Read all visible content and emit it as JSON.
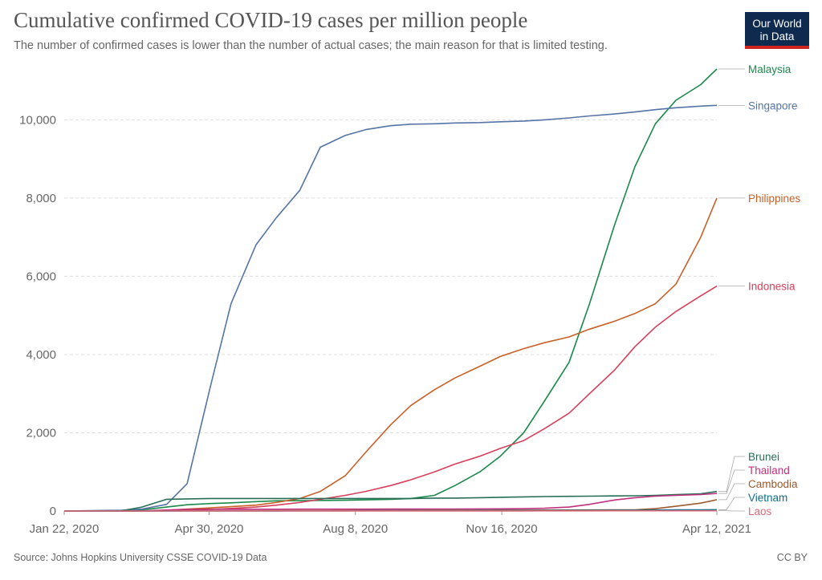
{
  "header": {
    "title": "Cumulative confirmed COVID-19 cases per million people",
    "subtitle": "The number of confirmed cases is lower than the number of actual cases; the main reason for that is limited testing."
  },
  "logo": {
    "line1": "Our World",
    "line2": "in Data"
  },
  "footer": {
    "source": "Source: Johns Hopkins University CSSE COVID-19 Data",
    "license": "CC BY"
  },
  "chart_data": {
    "type": "line",
    "title": "Cumulative confirmed COVID-19 cases per million people",
    "subtitle": "The number of confirmed cases is lower than the number of actual cases; the main reason for that is limited testing.",
    "xlabel": "",
    "ylabel": "",
    "xlim": [
      "2020-01-22",
      "2021-04-12"
    ],
    "ylim": [
      0,
      11300
    ],
    "xticks": [
      "Jan 22, 2020",
      "Apr 30, 2020",
      "Aug 8, 2020",
      "Nov 16, 2020",
      "Apr 12, 2021"
    ],
    "yticks": [
      "0",
      "2,000",
      "4,000",
      "6,000",
      "8,000",
      "10,000"
    ],
    "grid": "horizontal dashed",
    "legend": "line labels at right end",
    "x": [
      "2020-01-22",
      "2020-03-01",
      "2020-03-15",
      "2020-04-01",
      "2020-04-15",
      "2020-05-01",
      "2020-05-15",
      "2020-06-01",
      "2020-06-15",
      "2020-07-01",
      "2020-07-15",
      "2020-08-01",
      "2020-08-15",
      "2020-09-01",
      "2020-09-15",
      "2020-10-01",
      "2020-10-15",
      "2020-11-01",
      "2020-11-15",
      "2020-12-01",
      "2020-12-15",
      "2021-01-01",
      "2021-01-15",
      "2021-02-01",
      "2021-02-15",
      "2021-03-01",
      "2021-03-15",
      "2021-04-01",
      "2021-04-12"
    ],
    "series": [
      {
        "name": "Malaysia",
        "color": "#1a8a4a",
        "values": [
          0,
          0,
          30,
          100,
          160,
          190,
          210,
          240,
          260,
          265,
          270,
          275,
          285,
          300,
          320,
          400,
          650,
          1000,
          1400,
          2000,
          2800,
          3800,
          5300,
          7300,
          8800,
          9900,
          10500,
          10900,
          11300
        ]
      },
      {
        "name": "Singapore",
        "color": "#5574a6",
        "values": [
          0,
          20,
          50,
          170,
          700,
          3200,
          5300,
          6800,
          7500,
          8200,
          9300,
          9600,
          9750,
          9850,
          9890,
          9900,
          9920,
          9930,
          9950,
          9970,
          10000,
          10050,
          10100,
          10150,
          10200,
          10260,
          10310,
          10350,
          10370
        ]
      },
      {
        "name": "Philippines",
        "color": "#c86028",
        "values": [
          0,
          0,
          1,
          20,
          50,
          80,
          110,
          150,
          220,
          320,
          500,
          900,
          1500,
          2200,
          2700,
          3100,
          3400,
          3700,
          3950,
          4150,
          4300,
          4450,
          4650,
          4850,
          5050,
          5300,
          5800,
          7000,
          8000
        ]
      },
      {
        "name": "Indonesia",
        "color": "#d6405b",
        "values": [
          0,
          0,
          1,
          7,
          20,
          40,
          65,
          100,
          150,
          220,
          300,
          400,
          500,
          650,
          800,
          1000,
          1200,
          1400,
          1600,
          1800,
          2100,
          2500,
          3000,
          3600,
          4200,
          4700,
          5100,
          5500,
          5750
        ]
      },
      {
        "name": "Brunei",
        "color": "#286e56",
        "values": [
          0,
          5,
          100,
          300,
          310,
          320,
          320,
          320,
          320,
          320,
          320,
          320,
          320,
          320,
          320,
          330,
          330,
          340,
          350,
          360,
          370,
          375,
          380,
          385,
          390,
          400,
          420,
          440,
          500
        ]
      },
      {
        "name": "Thailand",
        "color": "#c0317d",
        "values": [
          0,
          1,
          5,
          25,
          40,
          45,
          45,
          46,
          46,
          47,
          47,
          48,
          48,
          49,
          50,
          51,
          52,
          54,
          56,
          60,
          70,
          100,
          170,
          280,
          340,
          380,
          400,
          420,
          450
        ]
      },
      {
        "name": "Cambodia",
        "color": "#9a5a2e",
        "values": [
          0,
          0,
          0,
          5,
          6,
          7,
          7,
          7,
          8,
          9,
          10,
          12,
          13,
          15,
          17,
          19,
          20,
          21,
          22,
          23,
          24,
          25,
          26,
          28,
          30,
          60,
          120,
          200,
          290
        ]
      },
      {
        "name": "Vietnam",
        "color": "#0f6f8c",
        "values": [
          0,
          0,
          1,
          2,
          3,
          3,
          3,
          3,
          3,
          4,
          4,
          5,
          8,
          9,
          10,
          11,
          11,
          12,
          12,
          13,
          13,
          14,
          15,
          18,
          20,
          25,
          28,
          30,
          32
        ]
      },
      {
        "name": "Laos",
        "color": "#dd6a78",
        "values": [
          0,
          0,
          0,
          1,
          2,
          2,
          2,
          2,
          2,
          2,
          2,
          2,
          2,
          2,
          2,
          2,
          2,
          3,
          3,
          3,
          4,
          4,
          5,
          6,
          6,
          7,
          7,
          7,
          8
        ]
      }
    ]
  }
}
